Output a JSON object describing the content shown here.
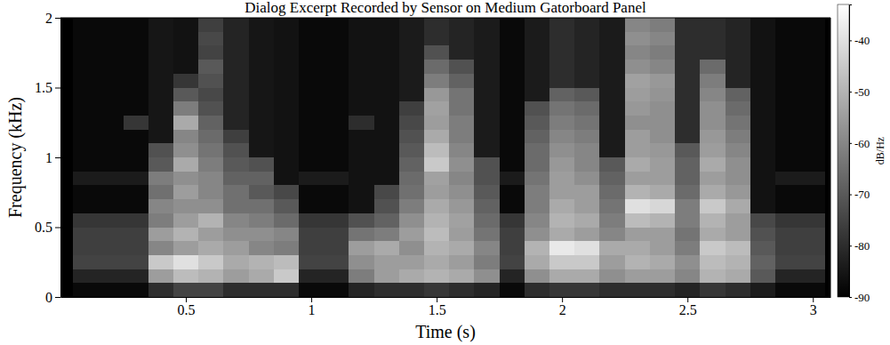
{
  "chart_data": {
    "type": "heatmap",
    "title": "Dialog Excerpt Recorded by Sensor on Medium Gatorboard Panel",
    "x_label": "Time (s)",
    "y_label": "Frequency (kHz)",
    "colorbar_label": "dB/Hz",
    "xlim": [
      0,
      3.07
    ],
    "ylim": [
      0,
      2
    ],
    "xticks": [
      0.5,
      1,
      1.5,
      2,
      2.5,
      3
    ],
    "yticks": [
      0,
      0.5,
      1,
      1.5,
      2
    ],
    "colorbar_range": [
      -90,
      -33
    ],
    "colorbar_ticks": [
      -40,
      -50,
      -60,
      -70,
      -80,
      -90
    ],
    "x": [
      0.1,
      0.2,
      0.3,
      0.4,
      0.5,
      0.6,
      0.7,
      0.8,
      0.9,
      1.0,
      1.1,
      1.2,
      1.3,
      1.4,
      1.5,
      1.6,
      1.7,
      1.8,
      1.9,
      2.0,
      2.1,
      2.2,
      2.3,
      2.4,
      2.5,
      2.6,
      2.7,
      2.8,
      2.9,
      3.0
    ],
    "y": [
      0.05,
      0.15,
      0.25,
      0.35,
      0.45,
      0.55,
      0.65,
      0.75,
      0.85,
      0.95,
      1.05,
      1.15,
      1.25,
      1.35,
      1.45,
      1.55,
      1.65,
      1.75,
      1.85,
      1.95
    ],
    "z": [
      [
        -88,
        -82,
        -75,
        -76,
        -76,
        -78,
        -88,
        -88,
        -84,
        -88,
        -88,
        -88,
        -88,
        -88,
        -88,
        -88,
        -88,
        -88,
        -88,
        -88
      ],
      [
        -88,
        -82,
        -75,
        -76,
        -76,
        -78,
        -88,
        -88,
        -84,
        -88,
        -88,
        -88,
        -88,
        -88,
        -88,
        -88,
        -88,
        -88,
        -88,
        -88
      ],
      [
        -88,
        -82,
        -75,
        -76,
        -76,
        -78,
        -88,
        -88,
        -84,
        -88,
        -88,
        -88,
        -78,
        -88,
        -88,
        -88,
        -88,
        -88,
        -88,
        -88
      ],
      [
        -80,
        -55,
        -45,
        -60,
        -55,
        -62,
        -60,
        -65,
        -62,
        -70,
        -72,
        -85,
        -85,
        -85,
        -85,
        -85,
        -85,
        -85,
        -85,
        -85
      ],
      [
        -75,
        -48,
        -40,
        -55,
        -50,
        -55,
        -58,
        -55,
        -58,
        -52,
        -58,
        -60,
        -52,
        -62,
        -70,
        -78,
        -86,
        -86,
        -86,
        -86
      ],
      [
        -75,
        -50,
        -45,
        -52,
        -55,
        -50,
        -58,
        -60,
        -60,
        -62,
        -64,
        -66,
        -68,
        -72,
        -74,
        -72,
        -70,
        -75,
        -74,
        -76
      ],
      [
        -80,
        -55,
        -52,
        -55,
        -58,
        -60,
        -65,
        -65,
        -68,
        -70,
        -72,
        -76,
        -82,
        -82,
        -82,
        -82,
        -82,
        -82,
        -82,
        -82
      ],
      [
        -80,
        -52,
        -50,
        -60,
        -58,
        -62,
        -65,
        -70,
        -68,
        -72,
        -85,
        -85,
        -85,
        -85,
        -85,
        -85,
        -85,
        -85,
        -85,
        -85
      ],
      [
        -80,
        -45,
        -48,
        -62,
        -60,
        -66,
        -70,
        -74,
        -86,
        -86,
        -86,
        -86,
        -86,
        -86,
        -86,
        -86,
        -86,
        -86,
        -86,
        -86
      ],
      [
        -88,
        -82,
        -75,
        -76,
        -76,
        -78,
        -88,
        -88,
        -84,
        -88,
        -88,
        -88,
        -88,
        -88,
        -88,
        -88,
        -88,
        -88,
        -88,
        -88
      ],
      [
        -88,
        -82,
        -75,
        -76,
        -76,
        -78,
        -88,
        -88,
        -84,
        -88,
        -88,
        -88,
        -88,
        -88,
        -88,
        -88,
        -88,
        -88,
        -88,
        -88
      ],
      [
        -82,
        -62,
        -58,
        -55,
        -64,
        -72,
        -86,
        -86,
        -86,
        -86,
        -86,
        -86,
        -80,
        -86,
        -86,
        -86,
        -86,
        -86,
        -86,
        -86
      ],
      [
        -80,
        -55,
        -55,
        -52,
        -62,
        -68,
        -72,
        -74,
        -86,
        -86,
        -86,
        -86,
        -86,
        -86,
        -86,
        -86,
        -86,
        -86,
        -86,
        -86
      ],
      [
        -80,
        -52,
        -55,
        -58,
        -55,
        -58,
        -62,
        -65,
        -66,
        -68,
        -70,
        -72,
        -74,
        -76,
        -84,
        -84,
        -84,
        -84,
        -84,
        -84
      ],
      [
        -78,
        -50,
        -52,
        -50,
        -48,
        -50,
        -52,
        -55,
        -54,
        -45,
        -48,
        -52,
        -55,
        -54,
        -56,
        -62,
        -66,
        -72,
        -80,
        -80
      ],
      [
        -80,
        -52,
        -55,
        -52,
        -55,
        -54,
        -56,
        -58,
        -60,
        -58,
        -60,
        -62,
        -62,
        -64,
        -64,
        -68,
        -72,
        -82,
        -82,
        -82
      ],
      [
        -82,
        -58,
        -62,
        -60,
        -64,
        -66,
        -68,
        -70,
        -72,
        -72,
        -84,
        -84,
        -84,
        -84,
        -84,
        -84,
        -84,
        -84,
        -84,
        -84
      ],
      [
        -88,
        -82,
        -75,
        -76,
        -76,
        -78,
        -88,
        -88,
        -84,
        -88,
        -88,
        -88,
        -88,
        -88,
        -88,
        -88,
        -88,
        -88,
        -88,
        -88
      ],
      [
        -80,
        -58,
        -52,
        -50,
        -58,
        -60,
        -62,
        -62,
        -64,
        -66,
        -66,
        -68,
        -70,
        -72,
        -84,
        -84,
        -84,
        -84,
        -84,
        -84
      ],
      [
        -78,
        -52,
        -45,
        -38,
        -52,
        -50,
        -52,
        -55,
        -55,
        -56,
        -58,
        -60,
        -62,
        -64,
        -68,
        -80,
        -80,
        -80,
        -80,
        -80
      ],
      [
        -78,
        -52,
        -45,
        -40,
        -55,
        -52,
        -55,
        -55,
        -58,
        -60,
        -60,
        -62,
        -64,
        -66,
        -70,
        -82,
        -82,
        -82,
        -82,
        -82
      ],
      [
        -80,
        -58,
        -55,
        -52,
        -60,
        -62,
        -64,
        -66,
        -68,
        -70,
        -84,
        -84,
        -84,
        -84,
        -84,
        -84,
        -84,
        -84,
        -84,
        -84
      ],
      [
        -80,
        -55,
        -50,
        -52,
        -55,
        -48,
        -40,
        -50,
        -55,
        -52,
        -55,
        -55,
        -58,
        -56,
        -55,
        -54,
        -58,
        -60,
        -58,
        -60
      ],
      [
        -80,
        -55,
        -52,
        -55,
        -55,
        -50,
        -42,
        -52,
        -55,
        -55,
        -56,
        -58,
        -58,
        -58,
        -57,
        -56,
        -60,
        -62,
        -60,
        -62
      ],
      [
        -82,
        -60,
        -58,
        -62,
        -64,
        -62,
        -62,
        -66,
        -68,
        -68,
        -70,
        -80,
        -80,
        -80,
        -80,
        -80,
        -80,
        -80,
        -80,
        -80
      ],
      [
        -78,
        -50,
        -48,
        -45,
        -52,
        -50,
        -45,
        -52,
        -55,
        -52,
        -55,
        -56,
        -58,
        -58,
        -60,
        -62,
        -66,
        -80,
        -80,
        -80
      ],
      [
        -80,
        -52,
        -50,
        -48,
        -55,
        -55,
        -52,
        -56,
        -58,
        -58,
        -60,
        -62,
        -64,
        -66,
        -68,
        -82,
        -82,
        -82,
        -82,
        -82
      ],
      [
        -84,
        -70,
        -68,
        -70,
        -72,
        -74,
        -86,
        -86,
        -86,
        -86,
        -86,
        -86,
        -86,
        -86,
        -86,
        -86,
        -86,
        -86,
        -86,
        -86
      ],
      [
        -88,
        -82,
        -75,
        -76,
        -76,
        -78,
        -88,
        -88,
        -84,
        -88,
        -88,
        -88,
        -88,
        -88,
        -88,
        -88,
        -88,
        -88,
        -88,
        -88
      ],
      [
        -88,
        -82,
        -75,
        -76,
        -76,
        -78,
        -88,
        -88,
        -84,
        -88,
        -88,
        -88,
        -88,
        -88,
        -88,
        -88,
        -88,
        -88,
        -88,
        -88
      ]
    ]
  }
}
